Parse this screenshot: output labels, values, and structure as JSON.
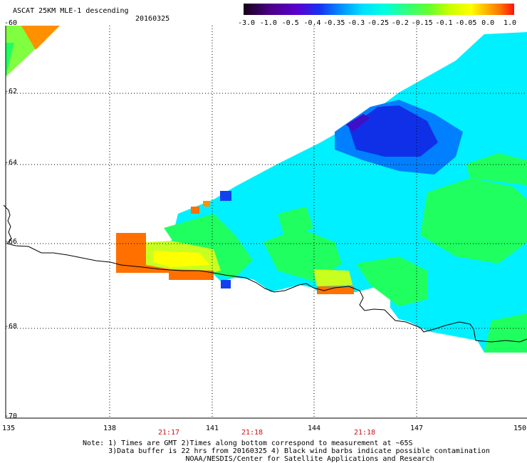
{
  "header": {
    "title": "ASCAT 25KM MLE-1 descending",
    "date": "20160325"
  },
  "colorbar": {
    "labels": [
      "-3.0",
      "-1.0",
      "-0.5",
      "-0.4",
      "-0.35",
      "-0.3",
      "-0.25",
      "-0.2",
      "-0.15",
      "-0.1",
      "-0.05",
      "0.0",
      "1.0"
    ],
    "colors": [
      "#180018",
      "#5a00a8",
      "#1830f0",
      "#0090ff",
      "#00e0ff",
      "#00ffe0",
      "#30ff80",
      "#60ff30",
      "#c8ff00",
      "#ffff00",
      "#ffb000",
      "#ff7000",
      "#ff1010"
    ]
  },
  "map": {
    "latitude_labels": [
      "-60",
      "-62",
      "-64",
      "-66",
      "-68",
      "-70"
    ],
    "longitude_labels": [
      "135",
      "138",
      "141",
      "144",
      "147",
      "150"
    ],
    "time_labels": [
      "21:17",
      "21:18",
      "21:18"
    ],
    "colors": {
      "cyan": "#00f0ff",
      "green": "#20ff60",
      "lightgreen": "#80ff40",
      "yellow": "#ffff00",
      "orange": "#ff7000",
      "blue": "#1040f0",
      "darkblue": "#2020d8",
      "purple": "#5000c0",
      "skyblue": "#00b0ff",
      "coast": "#000000",
      "grid": "#000000",
      "time_text": "#d01010"
    }
  },
  "notes": {
    "line1": "Note: 1) Times are GMT 2)Times along bottom correspond to measurement at ~65S",
    "line2": "      3)Data buffer is 22 hrs from 20160325 4) Black wind barbs indicate possible contamination",
    "line3": "                        NOAA/NESDIS/Center for Satellite Applications and Research"
  }
}
